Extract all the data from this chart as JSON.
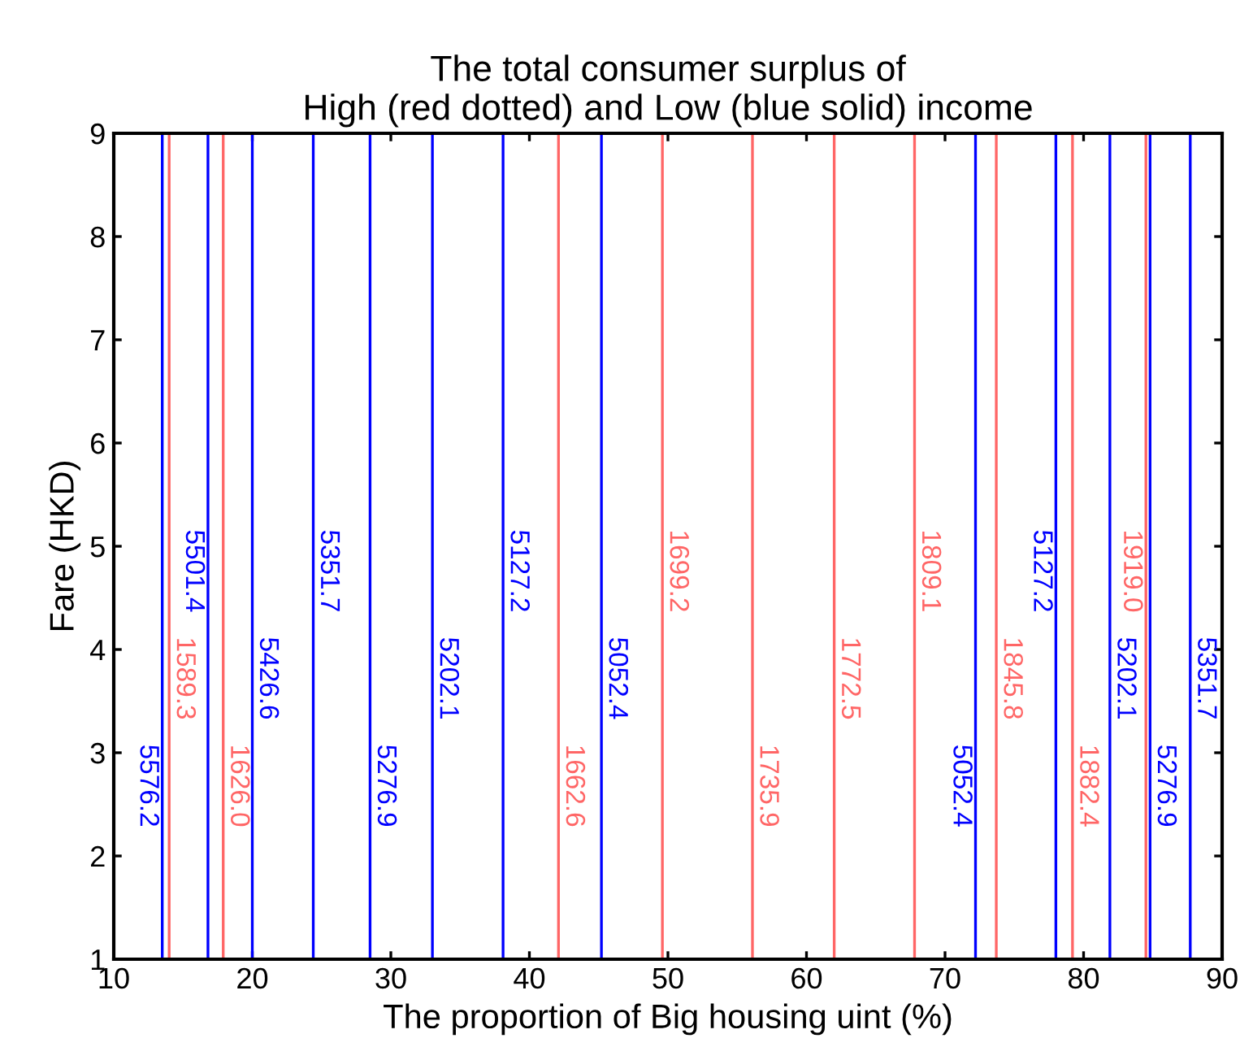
{
  "chart_data": {
    "type": "line",
    "title": "The total consumer surplus of\nHigh (red dotted) and Low (blue solid) income",
    "xlabel": "The proportion of Big housing uint (%)",
    "ylabel": "Fare (HKD)",
    "xlim": [
      10,
      90
    ],
    "xticks": [
      10,
      20,
      30,
      40,
      50,
      60,
      70,
      80,
      90
    ],
    "ylim": [
      1,
      9
    ],
    "yticks": [
      1,
      2,
      3,
      4,
      5,
      6,
      7,
      8,
      9
    ],
    "marker": "none",
    "line_style": "solid",
    "series": [
      {
        "name": "5576.2",
        "color": "#0000ff",
        "x": [
          13.5,
          13.5
        ],
        "values": [
          1,
          9
        ]
      },
      {
        "name": "1589.3",
        "color": "#ff6666",
        "x": [
          14.0,
          14.0
        ],
        "values": [
          1,
          9
        ]
      },
      {
        "name": "5501.4",
        "color": "#0000ff",
        "x": [
          16.8,
          16.8
        ],
        "values": [
          1,
          9
        ]
      },
      {
        "name": "1626.0",
        "color": "#ff6666",
        "x": [
          17.9,
          17.9
        ],
        "values": [
          1,
          9
        ]
      },
      {
        "name": "5426.6",
        "color": "#0000ff",
        "x": [
          20.0,
          20.0
        ],
        "values": [
          1,
          9
        ]
      },
      {
        "name": "5351.7",
        "color": "#0000ff",
        "x": [
          24.4,
          24.4
        ],
        "values": [
          1,
          9
        ]
      },
      {
        "name": "5276.9",
        "color": "#0000ff",
        "x": [
          28.5,
          28.5
        ],
        "values": [
          1,
          9
        ]
      },
      {
        "name": "5202.1",
        "color": "#0000ff",
        "x": [
          33.0,
          33.0
        ],
        "values": [
          1,
          9
        ]
      },
      {
        "name": "5127.2",
        "color": "#0000ff",
        "x": [
          38.1,
          38.1
        ],
        "values": [
          1,
          9
        ]
      },
      {
        "name": "1662.6",
        "color": "#ff6666",
        "x": [
          42.1,
          42.1
        ],
        "values": [
          1,
          9
        ]
      },
      {
        "name": "5052.4",
        "color": "#0000ff",
        "x": [
          45.2,
          45.2
        ],
        "values": [
          1,
          9
        ]
      },
      {
        "name": "1699.2",
        "color": "#ff6666",
        "x": [
          49.6,
          49.6
        ],
        "values": [
          1,
          9
        ]
      },
      {
        "name": "1735.9",
        "color": "#ff6666",
        "x": [
          56.1,
          56.1
        ],
        "values": [
          1,
          9
        ]
      },
      {
        "name": "1772.5",
        "color": "#ff6666",
        "x": [
          62.0,
          62.0
        ],
        "values": [
          1,
          9
        ]
      },
      {
        "name": "1809.1",
        "color": "#ff6666",
        "x": [
          67.8,
          67.8
        ],
        "values": [
          1,
          9
        ]
      },
      {
        "name": "5052.4",
        "color": "#0000ff",
        "x": [
          72.2,
          72.2
        ],
        "values": [
          1,
          9
        ]
      },
      {
        "name": "1845.8",
        "color": "#ff6666",
        "x": [
          73.7,
          73.7
        ],
        "values": [
          1,
          9
        ]
      },
      {
        "name": "5127.2",
        "color": "#0000ff",
        "x": [
          78.0,
          78.0
        ],
        "values": [
          1,
          9
        ]
      },
      {
        "name": "1882.4",
        "color": "#ff6666",
        "x": [
          79.2,
          79.2
        ],
        "values": [
          1,
          9
        ]
      },
      {
        "name": "5202.1",
        "color": "#0000ff",
        "x": [
          81.9,
          81.9
        ],
        "values": [
          1,
          9
        ]
      },
      {
        "name": "1919.0",
        "color": "#ff6666",
        "x": [
          84.5,
          84.5
        ],
        "values": [
          1,
          9
        ]
      },
      {
        "name": "5276.9",
        "color": "#0000ff",
        "x": [
          84.8,
          84.8
        ],
        "values": [
          1,
          9
        ]
      },
      {
        "name": "5351.7",
        "color": "#0000ff",
        "x": [
          87.7,
          87.7
        ],
        "values": [
          1,
          9
        ]
      }
    ]
  }
}
